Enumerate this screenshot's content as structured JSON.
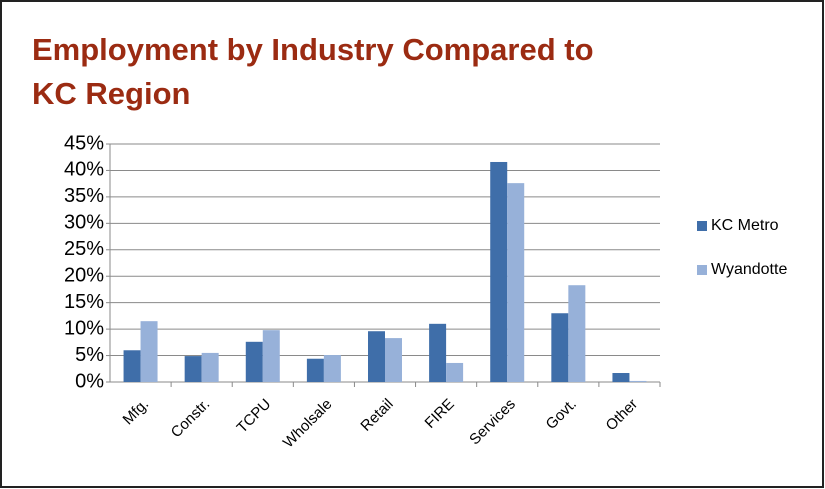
{
  "chart_data": {
    "type": "bar",
    "title": "Employment by Industry Compared to KC Region",
    "categories": [
      "Mfg.",
      "Constr.",
      "TCPU",
      "Wholsale",
      "Retail",
      "FIRE",
      "Services",
      "Govt.",
      "Other"
    ],
    "series": [
      {
        "name": "KC Metro",
        "color": "#3f6ea9",
        "values": [
          6,
          4.9,
          7.6,
          4.4,
          9.6,
          11,
          41.6,
          13,
          1.7
        ]
      },
      {
        "name": "Wyandotte",
        "color": "#97b1d9",
        "values": [
          11.5,
          5.5,
          9.8,
          5.1,
          8.3,
          3.6,
          37.6,
          18.3,
          0.2
        ]
      }
    ],
    "ylim": [
      0,
      45
    ],
    "yticks": [
      {
        "value": 0,
        "label": "0%"
      },
      {
        "value": 5,
        "label": "5%"
      },
      {
        "value": 10,
        "label": "10%"
      },
      {
        "value": 15,
        "label": "15%"
      },
      {
        "value": 20,
        "label": "20%"
      },
      {
        "value": 25,
        "label": "25%"
      },
      {
        "value": 30,
        "label": "30%"
      },
      {
        "value": 35,
        "label": "35%"
      },
      {
        "value": 40,
        "label": "40%"
      },
      {
        "value": 45,
        "label": "45%"
      }
    ],
    "grid": true,
    "legend": "right"
  }
}
